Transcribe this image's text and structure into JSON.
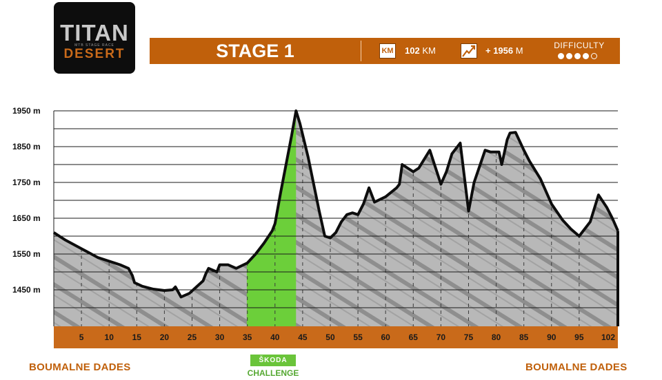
{
  "logo": {
    "title": "TITAN",
    "subtitle": "MTB STAGE RACE",
    "name": "DESERT"
  },
  "banner": {
    "stage": "STAGE 1",
    "km_icon": "KM",
    "distance_value": "102",
    "distance_unit": "KM",
    "elevation_value": "+ 1956",
    "elevation_unit": "M",
    "difficulty_label": "DIFFICULTY",
    "difficulty_level": 4,
    "difficulty_max": 5,
    "climb_icon": "mountain-climb-icon"
  },
  "places": {
    "start": "BOUMALNE DADES",
    "finish": "BOUMALNE DADES"
  },
  "sponsor": {
    "badge": "ŠKODA",
    "label": "CHALLENGE"
  },
  "colors": {
    "banner": "#c0600b",
    "axis_bar": "#c96a1a",
    "profile_fill": "#b8b8b8",
    "profile_stroke": "#0d0d0d",
    "challenge": "#6ccf3a"
  },
  "chart_data": {
    "type": "area",
    "title": "",
    "xlabel": "",
    "ylabel": "",
    "xlim": [
      0,
      102
    ],
    "ylim": [
      1350,
      1950
    ],
    "grid": true,
    "y_ticks": [
      1450,
      1550,
      1650,
      1750,
      1850,
      1950
    ],
    "y_tick_labels": [
      "1450 m",
      "1550 m",
      "1650 m",
      "1750 m",
      "1850 m",
      "1950 m"
    ],
    "x_ticks": [
      5,
      10,
      15,
      20,
      25,
      30,
      35,
      40,
      45,
      50,
      55,
      60,
      65,
      70,
      75,
      80,
      85,
      90,
      95,
      102
    ],
    "x_tick_labels": [
      "5",
      "10",
      "15",
      "20",
      "25",
      "30",
      "35",
      "40",
      "45",
      "50",
      "55",
      "60",
      "65",
      "70",
      "75",
      "80",
      "85",
      "90",
      "95",
      "102"
    ],
    "highlight_range": [
      34.9,
      43.8
    ],
    "series": [
      {
        "x": [
          0,
          2,
          5,
          8,
          10,
          12,
          13.5,
          14.2,
          14.6,
          16,
          18,
          20,
          21.5,
          22,
          23,
          24.5,
          27,
          27.5,
          28,
          29.5,
          30,
          31.5,
          33,
          35,
          36.5,
          38,
          39.5,
          40,
          41,
          42,
          43,
          43.8,
          44.5,
          46,
          48,
          49,
          50,
          51,
          52,
          53,
          54,
          55,
          56,
          57,
          58,
          60,
          62,
          62.5,
          63,
          65,
          66,
          68,
          70,
          71,
          72,
          73.5,
          75,
          76,
          78,
          79,
          80.5,
          81,
          82,
          82.5,
          83.5,
          85,
          86,
          88,
          90,
          92,
          93.5,
          95,
          96,
          97,
          98.5,
          100,
          101,
          102
        ],
        "y": [
          1610,
          1590,
          1565,
          1540,
          1530,
          1520,
          1510,
          1490,
          1470,
          1460,
          1452,
          1448,
          1450,
          1458,
          1430,
          1440,
          1475,
          1495,
          1510,
          1500,
          1520,
          1520,
          1510,
          1525,
          1550,
          1580,
          1615,
          1635,
          1720,
          1800,
          1880,
          1950,
          1915,
          1820,
          1670,
          1600,
          1595,
          1610,
          1640,
          1660,
          1665,
          1660,
          1690,
          1735,
          1695,
          1710,
          1735,
          1745,
          1800,
          1780,
          1790,
          1840,
          1745,
          1780,
          1830,
          1860,
          1670,
          1750,
          1840,
          1835,
          1835,
          1800,
          1870,
          1888,
          1890,
          1840,
          1810,
          1760,
          1690,
          1645,
          1620,
          1600,
          1620,
          1640,
          1715,
          1680,
          1650,
          1615
        ]
      }
    ]
  }
}
